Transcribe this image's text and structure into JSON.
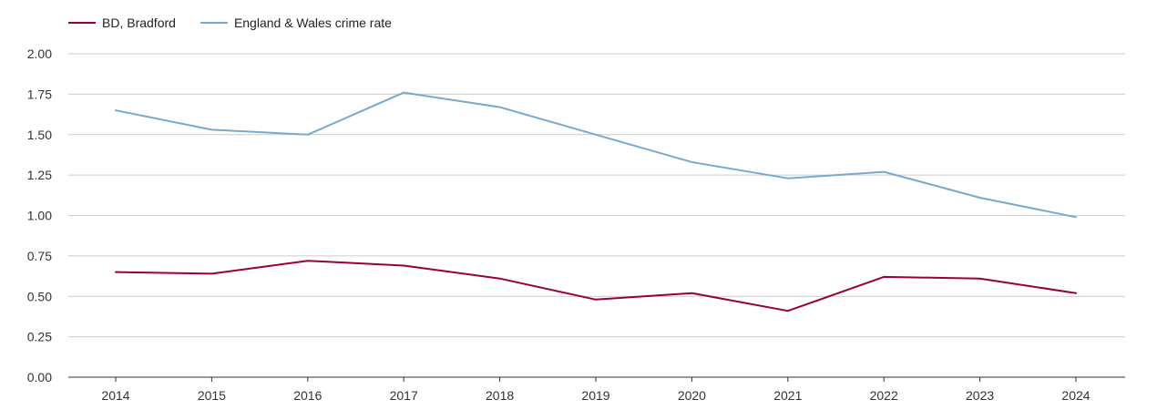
{
  "chart_data": {
    "type": "line",
    "title": "",
    "xlabel": "",
    "ylabel": "",
    "categories": [
      "2014",
      "2015",
      "2016",
      "2017",
      "2018",
      "2019",
      "2020",
      "2021",
      "2022",
      "2023",
      "2024"
    ],
    "ylim": [
      0,
      2
    ],
    "yticks": [
      "0.00",
      "0.25",
      "0.50",
      "0.75",
      "1.00",
      "1.25",
      "1.50",
      "1.75",
      "2.00"
    ],
    "grid": true,
    "legend_position": "top-left",
    "series": [
      {
        "name": "BD, Bradford",
        "color": "#990033",
        "values": [
          0.65,
          0.64,
          0.72,
          0.69,
          0.61,
          0.48,
          0.52,
          0.41,
          0.62,
          0.61,
          0.52
        ]
      },
      {
        "name": "England & Wales crime rate",
        "color": "#77aacc",
        "values": [
          1.65,
          1.53,
          1.5,
          1.76,
          1.67,
          1.5,
          1.33,
          1.23,
          1.27,
          1.11,
          0.99
        ]
      }
    ]
  }
}
